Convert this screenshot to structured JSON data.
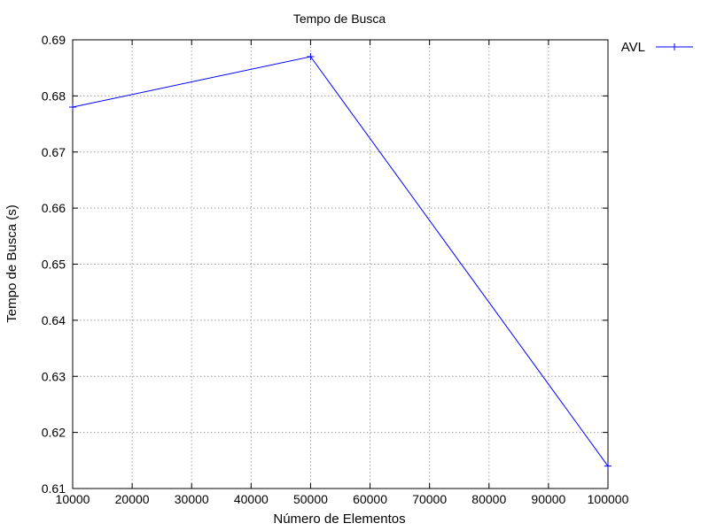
{
  "chart_data": {
    "type": "line",
    "title": "Tempo de Busca",
    "xlabel": "Número de Elementos",
    "ylabel": "Tempo de Busca (s)",
    "xlim": [
      10000,
      100000
    ],
    "ylim": [
      0.61,
      0.69
    ],
    "xticks": [
      10000,
      20000,
      30000,
      40000,
      50000,
      60000,
      70000,
      80000,
      90000,
      100000
    ],
    "yticks": [
      0.61,
      0.62,
      0.63,
      0.64,
      0.65,
      0.66,
      0.67,
      0.68,
      0.69
    ],
    "ytick_labels": [
      "0.61",
      "0.62",
      "0.63",
      "0.64",
      "0.65",
      "0.66",
      "0.67",
      "0.68",
      "0.69"
    ],
    "grid": true,
    "legend_position": "top-right outside",
    "series": [
      {
        "name": "AVL",
        "color": "#0000ff",
        "marker": "plus",
        "x": [
          10000,
          50000,
          100000
        ],
        "y": [
          0.678,
          0.687,
          0.614
        ]
      }
    ]
  }
}
